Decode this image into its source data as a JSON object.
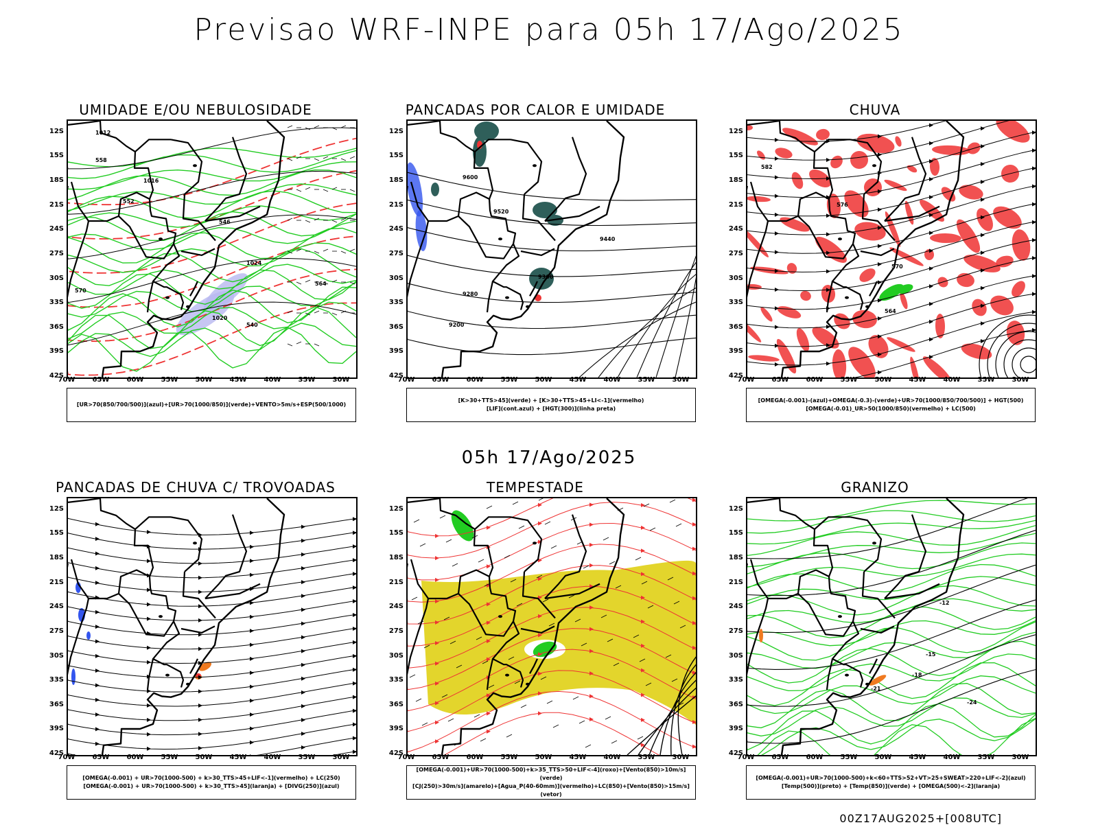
{
  "header": {
    "title": "Previsao WRF-INPE  para 05h 17/Ago/2025",
    "subtitle": "05h 17/Ago/2025",
    "stamp": "00Z17AUG2025+[008UTC]"
  },
  "axes": {
    "lat_labels": [
      "12S",
      "15S",
      "18S",
      "21S",
      "24S",
      "27S",
      "30S",
      "33S",
      "36S",
      "39S",
      "42S"
    ],
    "lon_labels": [
      "70W",
      "65W",
      "60W",
      "55W",
      "50W",
      "45W",
      "40W",
      "35W",
      "30W"
    ]
  },
  "panels": [
    {
      "id": "umidade",
      "title": "UMIDADE E/OU NEBULOSIDADE",
      "legend": [
        "[UR>70(850/700/500)](azul)+[UR>70(1000/850)](verde)+VENTO>5m/s+ESP(500/1000)"
      ],
      "labels": [
        "1012",
        "1016",
        "1020",
        "1024",
        "570",
        "564",
        "558",
        "552",
        "546",
        "540"
      ]
    },
    {
      "id": "pancadas-calor",
      "title": "PANCADAS POR CALOR E UMIDADE",
      "legend": [
        "[K>30+TTS>45](verde) + [K>30+TTS>45+LI<-1](vermelho)",
        "[LIF](cont.azul) + [HGT(300)](linha preta)"
      ],
      "labels": [
        "9600",
        "9520",
        "9440",
        "9360",
        "9280",
        "9200"
      ]
    },
    {
      "id": "chuva",
      "title": "CHUVA",
      "legend": [
        "[OMEGA(-0.001)-(azul)+OMEGA(-0.3)-(verde)+UR>70(1000/850/700/500)] + HGT(500)",
        "[OMEGA(-0.01)_UR>50(1000/850)(vermelho) + LC(500)"
      ],
      "labels": [
        "582",
        "576",
        "570",
        "564"
      ]
    },
    {
      "id": "pancadas-trovoadas",
      "title": "PANCADAS DE CHUVA C/ TROVOADAS",
      "legend": [
        "[OMEGA(-0.001) + UR>70(1000-500) + k>30_TTS>45+LIF<-1](vermelho) + LC(250)",
        "[OMEGA(-0.001) + UR>70(1000-500) + k>30_TTS>45](laranja) + [DIVG(250)](azul)"
      ],
      "labels": []
    },
    {
      "id": "tempestade",
      "title": "TEMPESTADE",
      "legend": [
        "[OMEGA(-0.001)+UR>70(1000-500)+k>35_TTS>50+LIF<-4](roxo)+[Vento(850)>10m/s](verde)",
        "[CJ(250)>30m/s](amarelo)+[Agua_P(40-60mm)](vermelho)+LC(850)+[Vento(850)>15m/s](vetor)"
      ],
      "labels": []
    },
    {
      "id": "granizo",
      "title": "GRANIZO",
      "legend": [
        "[OMEGA(-0.001)+UR>70(1000-500)+k<60+TTS>52+VT>25+SWEAT>220+LIF<-2](azul)",
        "[Temp(500)](preto) + [Temp(850)](verde) + [OMEGA(500)<-2](laranja)"
      ],
      "labels": [
        "-12",
        "-15",
        "-18",
        "-21",
        "-24"
      ]
    }
  ],
  "colors": {
    "green": "#22cc22",
    "red": "#ee3333",
    "blue": "#3355ee",
    "teal": "#2f5f5a",
    "yellow": "#e3d52c",
    "orange": "#f07a20",
    "lavender": "#b8b8f0"
  }
}
